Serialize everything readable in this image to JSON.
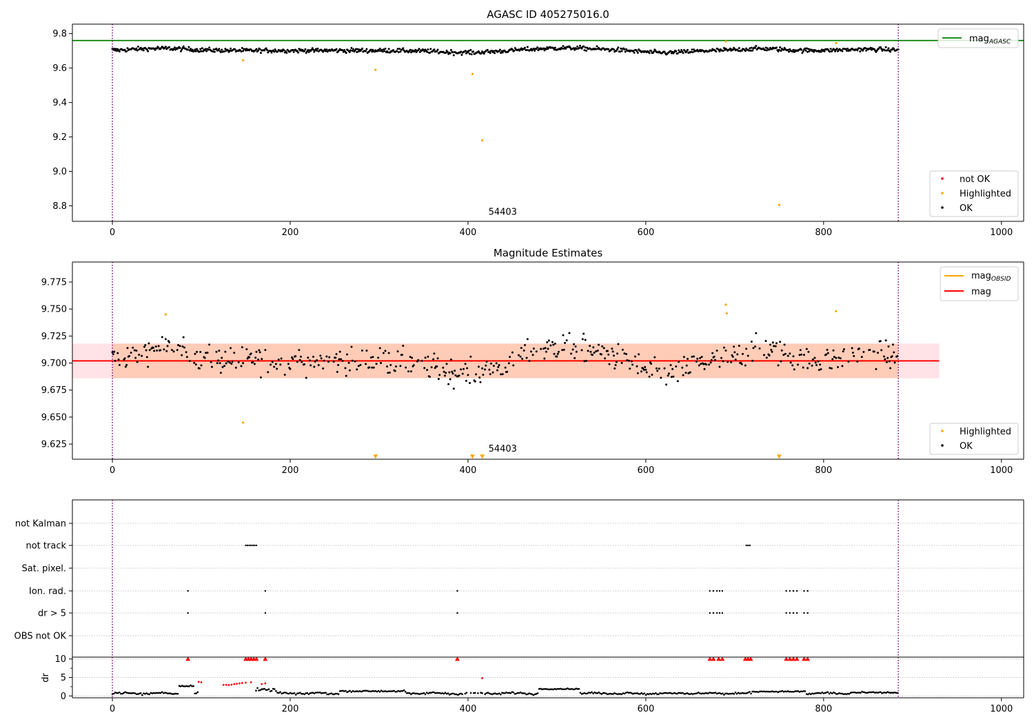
{
  "chart_data": [
    {
      "type": "scatter",
      "title": "AGASC ID 405275016.0",
      "xlim": [
        -45,
        1025
      ],
      "ylim": [
        8.71,
        9.855
      ],
      "xticks": [
        0,
        200,
        400,
        600,
        800,
        1000
      ],
      "yticks": [
        8.8,
        9.0,
        9.2,
        9.4,
        9.6,
        9.8
      ],
      "obs_boundaries": [
        0,
        884
      ],
      "obs_label": {
        "text": "54403",
        "x": 423,
        "y": 8.76
      },
      "reference_line": {
        "name": "mag_AGASC",
        "y": 9.76,
        "color": "#008000"
      },
      "series": [
        {
          "name": "not OK",
          "color": "#ff0000",
          "points": []
        },
        {
          "name": "Highlighted",
          "color": "#ffa500",
          "points": [
            [
              147,
              9.645
            ],
            [
              296,
              9.59
            ],
            [
              405,
              9.565
            ],
            [
              416,
              9.18
            ],
            [
              690,
              9.755
            ],
            [
              750,
              8.805
            ],
            [
              814,
              9.745
            ]
          ]
        },
        {
          "name": "OK",
          "color": "#000000",
          "points": []
        }
      ],
      "legends": [
        {
          "placement": "upper-right",
          "entries": [
            {
              "label": "mag",
              "subscript": "AGASC",
              "kind": "line",
              "color": "#008000"
            }
          ]
        },
        {
          "placement": "lower-right",
          "entries": [
            {
              "label": "not OK",
              "kind": "dot",
              "color": "#ff0000"
            },
            {
              "label": "Highlighted",
              "kind": "dot",
              "color": "#ffa500"
            },
            {
              "label": "OK",
              "kind": "dot",
              "color": "#000000"
            }
          ]
        }
      ]
    },
    {
      "type": "scatter",
      "title": "Magnitude Estimates",
      "xlim": [
        -45,
        1025
      ],
      "ylim": [
        9.611,
        9.7935
      ],
      "xticks": [
        0,
        200,
        400,
        600,
        800,
        1000
      ],
      "yticks": [
        9.625,
        9.65,
        9.675,
        9.7,
        9.725,
        9.75,
        9.775
      ],
      "obs_boundaries": [
        0,
        884
      ],
      "obs_label": {
        "text": "54403",
        "x": 423,
        "y": 9.616
      },
      "mag": {
        "name": "mag",
        "value": 9.702,
        "band": [
          9.686,
          9.718
        ],
        "x_range": [
          -45,
          930
        ],
        "color": "#ff0000"
      },
      "mag_obsid": {
        "name": "mag_OBSID",
        "value": 9.702,
        "band": [
          9.686,
          9.718
        ],
        "x_range": [
          0,
          884
        ],
        "color": "#ffa500"
      },
      "series": [
        {
          "name": "Highlighted",
          "color": "#ffa500",
          "points": [
            [
              60,
              9.745
            ],
            [
              147,
              9.645
            ],
            [
              690,
              9.754
            ],
            [
              691,
              9.746
            ],
            [
              814,
              9.748
            ]
          ]
        },
        {
          "name": "Highlighted (below range)",
          "color": "#ffa500",
          "marker": "triangle-down",
          "points": [
            [
              296,
              9.612
            ],
            [
              405,
              9.612
            ],
            [
              416,
              9.612
            ],
            [
              750,
              9.612
            ]
          ]
        },
        {
          "name": "OK",
          "color": "#000000",
          "points": []
        }
      ],
      "legends": [
        {
          "placement": "upper-right",
          "entries": [
            {
              "label": "mag",
              "subscript": "OBSID",
              "kind": "line",
              "color": "#ffa500"
            },
            {
              "label": "mag",
              "kind": "line",
              "color": "#ff0000"
            }
          ]
        },
        {
          "placement": "lower-right",
          "entries": [
            {
              "label": "Highlighted",
              "kind": "dot",
              "color": "#ffa500"
            },
            {
              "label": "OK",
              "kind": "dot",
              "color": "#000000"
            }
          ]
        }
      ]
    },
    {
      "type": "scatter",
      "title": "",
      "xlim": [
        -45,
        1025
      ],
      "obs_boundaries": [
        0,
        884
      ],
      "flag_rows": [
        "not Kalman",
        "not track",
        "Sat. pixel.",
        "Ion. rad.",
        "dr > 5",
        "OBS not OK"
      ],
      "flag_points": {
        "not Kalman": [],
        "not track": [
          150,
          152,
          154,
          156,
          158,
          160,
          162,
          713,
          715,
          717
        ],
        "Sat. pixel.": [],
        "Ion. rad.": [
          85,
          172,
          388,
          672,
          676,
          680,
          683,
          686,
          758,
          762,
          766,
          770,
          778,
          782
        ],
        "dr > 5": [
          85,
          172,
          388,
          672,
          676,
          680,
          683,
          686,
          758,
          762,
          766,
          770,
          778,
          782
        ],
        "OBS not OK": []
      }
    },
    {
      "type": "scatter",
      "title": "",
      "ylabel": "dr",
      "xlim": [
        -45,
        1025
      ],
      "ylim": [
        -0.5,
        10.5
      ],
      "xticks": [
        0,
        200,
        400,
        600,
        800,
        1000
      ],
      "yticks": [
        0,
        5,
        10
      ],
      "obs_boundaries": [
        0,
        884
      ],
      "series": [
        {
          "name": "not OK",
          "color": "#ff0000",
          "points": [
            [
              97,
              3.8
            ],
            [
              100,
              3.7
            ],
            [
              125,
              3.0
            ],
            [
              128,
              3.0
            ],
            [
              131,
              2.95
            ],
            [
              134,
              3.05
            ],
            [
              137,
              3.2
            ],
            [
              140,
              3.3
            ],
            [
              143,
              3.4
            ],
            [
              146,
              3.5
            ],
            [
              150,
              3.6
            ],
            [
              156,
              3.7
            ],
            [
              168,
              3.2
            ],
            [
              172,
              3.4
            ],
            [
              416,
              4.8
            ]
          ]
        },
        {
          "name": "dr > 5 (clipped)",
          "color": "#ff0000",
          "marker": "triangle-up",
          "points": [
            [
              85,
              10
            ],
            [
              150,
              10
            ],
            [
              153,
              10
            ],
            [
              156,
              10
            ],
            [
              159,
              10
            ],
            [
              162,
              10
            ],
            [
              172,
              10
            ],
            [
              388,
              10
            ],
            [
              672,
              10
            ],
            [
              676,
              10
            ],
            [
              682,
              10
            ],
            [
              686,
              10
            ],
            [
              712,
              10
            ],
            [
              715,
              10
            ],
            [
              718,
              10
            ],
            [
              758,
              10
            ],
            [
              762,
              10
            ],
            [
              766,
              10
            ],
            [
              770,
              10
            ],
            [
              778,
              10
            ],
            [
              782,
              10
            ]
          ]
        },
        {
          "name": "OK",
          "color": "#000000",
          "points": []
        }
      ]
    }
  ]
}
